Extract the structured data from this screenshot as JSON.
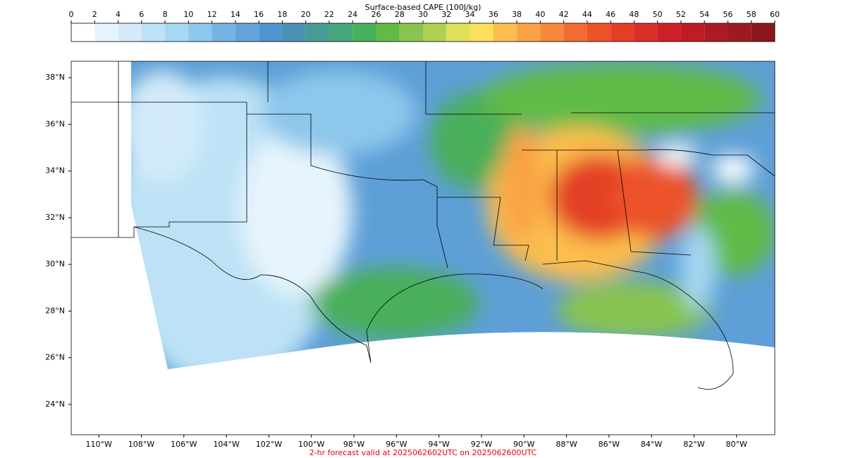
{
  "colorbar": {
    "label": "Surface-based CAPE (100J/kg)",
    "ticks": [
      0,
      2,
      4,
      6,
      8,
      10,
      12,
      14,
      16,
      18,
      20,
      22,
      24,
      26,
      28,
      30,
      32,
      34,
      36,
      38,
      40,
      42,
      44,
      46,
      48,
      50,
      52,
      54,
      56,
      58,
      60
    ],
    "colors": [
      "#ffffff",
      "#e6f4fd",
      "#d3ebf9",
      "#bde2f6",
      "#a6d7f3",
      "#8dc7ec",
      "#75b3e2",
      "#64a4da",
      "#5095d1",
      "#4b91b5",
      "#489c98",
      "#46a57d",
      "#4aaf5a",
      "#61bb46",
      "#88c44f",
      "#b0d055",
      "#dfe05a",
      "#fce05a",
      "#fbbd4d",
      "#f9a345",
      "#f7873a",
      "#f26b30",
      "#ec5329",
      "#e43f26",
      "#da2e28",
      "#cf1f28",
      "#bf1c26",
      "#ac1a24",
      "#9d1a20",
      "#8d181c"
    ]
  },
  "map": {
    "lat_lim": [
      22.7,
      38.7
    ],
    "lon_lim": [
      -111.3,
      -78.2
    ],
    "lat_ticks": [
      {
        "value": 38,
        "label": "38°N"
      },
      {
        "value": 36,
        "label": "36°N"
      },
      {
        "value": 34,
        "label": "34°N"
      },
      {
        "value": 32,
        "label": "32°N"
      },
      {
        "value": 30,
        "label": "30°N"
      },
      {
        "value": 28,
        "label": "28°N"
      },
      {
        "value": 26,
        "label": "26°N"
      },
      {
        "value": 24,
        "label": "24°N"
      }
    ],
    "lon_ticks": [
      {
        "value": -110,
        "label": "110°W"
      },
      {
        "value": -108,
        "label": "108°W"
      },
      {
        "value": -106,
        "label": "106°W"
      },
      {
        "value": -104,
        "label": "104°W"
      },
      {
        "value": -102,
        "label": "102°W"
      },
      {
        "value": -100,
        "label": "100°W"
      },
      {
        "value": -98,
        "label": "98°W"
      },
      {
        "value": -96,
        "label": "96°W"
      },
      {
        "value": -94,
        "label": "94°W"
      },
      {
        "value": -92,
        "label": "92°W"
      },
      {
        "value": -90,
        "label": "90°W"
      },
      {
        "value": -88,
        "label": "88°W"
      },
      {
        "value": -86,
        "label": "86°W"
      },
      {
        "value": -84,
        "label": "84°W"
      },
      {
        "value": -82,
        "label": "82°W"
      },
      {
        "value": -80,
        "label": "80°W"
      }
    ],
    "footer": "2-hr forecast valid at 2025062602UTC on 2025062600UTC"
  }
}
